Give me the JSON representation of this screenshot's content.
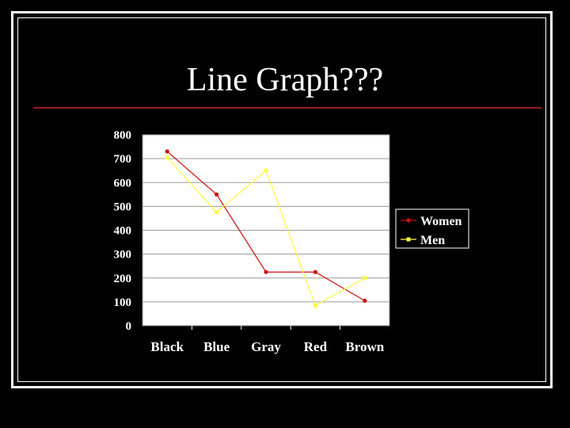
{
  "slide": {
    "title": "Line Graph???",
    "rule_color": "#9b1c1c",
    "background": "#000000"
  },
  "chart_data": {
    "type": "line",
    "title": "",
    "xlabel": "",
    "ylabel": "",
    "categories": [
      "Black",
      "Blue",
      "Gray",
      "Red",
      "Brown"
    ],
    "ylim": [
      0,
      800
    ],
    "yticks": [
      0,
      100,
      200,
      300,
      400,
      500,
      600,
      700,
      800
    ],
    "grid": true,
    "legend": "right",
    "series": [
      {
        "name": "Women",
        "color": "#cc1111",
        "marker": "circle",
        "values": [
          730,
          550,
          225,
          225,
          105
        ]
      },
      {
        "name": "Men",
        "color": "#ffff44",
        "marker": "square",
        "values": [
          705,
          475,
          650,
          85,
          200
        ]
      }
    ]
  }
}
